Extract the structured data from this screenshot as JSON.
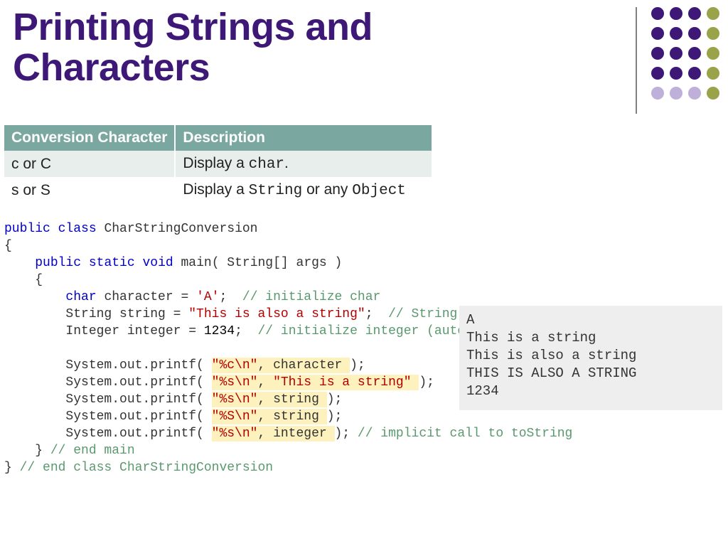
{
  "title": "Printing Strings and\nCharacters",
  "title_color": "#3d1877",
  "dot_grid": {
    "rows": 5,
    "cols": 4,
    "colors": [
      "#3d1877",
      "#3d1877",
      "#3d1877",
      "#9aa24a",
      "#3d1877",
      "#3d1877",
      "#3d1877",
      "#9aa24a",
      "#3d1877",
      "#3d1877",
      "#3d1877",
      "#9aa24a",
      "#3d1877",
      "#3d1877",
      "#3d1877",
      "#9aa24a",
      "#bfb0d9",
      "#bfb0d9",
      "#bfb0d9",
      "#9aa24a"
    ]
  },
  "table": {
    "header_bg": "#7aa8a1",
    "row_even_bg": "#e7eeec",
    "row_odd_bg": "#ffffff",
    "columns": [
      "Conversion Character",
      "Description"
    ],
    "rows": [
      {
        "c0": "c or C",
        "c1_pre": "Display a ",
        "c1_code": "char",
        "c1_post": "."
      },
      {
        "c0": "s or S",
        "c1_pre": "Display a ",
        "c1_code": "String",
        "c1_post": " or any ",
        "c1_code2": "Object"
      }
    ]
  },
  "code": {
    "kw_color": "#0000c8",
    "str_color": "#b00000",
    "cmt_color": "#5a986e",
    "highlight_bg": "#fdf1be",
    "lines": [
      [
        {
          "t": "public",
          "c": "kw"
        },
        {
          "t": " "
        },
        {
          "t": "class",
          "c": "kw"
        },
        {
          "t": " CharStringConversion"
        }
      ],
      [
        {
          "t": "{"
        }
      ],
      [
        {
          "t": "    "
        },
        {
          "t": "public",
          "c": "kw"
        },
        {
          "t": " "
        },
        {
          "t": "static",
          "c": "kw"
        },
        {
          "t": " "
        },
        {
          "t": "void",
          "c": "kw"
        },
        {
          "t": " main( String[] args )"
        }
      ],
      [
        {
          "t": "    {"
        }
      ],
      [
        {
          "t": "        "
        },
        {
          "t": "char",
          "c": "kw"
        },
        {
          "t": " character = "
        },
        {
          "t": "'A'",
          "c": "str"
        },
        {
          "t": ";  "
        },
        {
          "t": "// initialize char",
          "c": "cmt"
        }
      ],
      [
        {
          "t": "        String string = "
        },
        {
          "t": "\"This is also a string\"",
          "c": "str"
        },
        {
          "t": ";  "
        },
        {
          "t": "// String o",
          "c": "cmt"
        }
      ],
      [
        {
          "t": "        Integer integer = "
        },
        {
          "t": "1234",
          "c": "num"
        },
        {
          "t": ";  "
        },
        {
          "t": "// initialize integer (autob",
          "c": "cmt"
        }
      ],
      [
        {
          "t": " "
        }
      ],
      [
        {
          "t": "        System.out.printf( "
        },
        {
          "t": "\"%c\\n\"",
          "c": "str",
          "hl": true
        },
        {
          "t": ", ",
          "hl": true
        },
        {
          "t": "character ",
          "hl": true
        },
        {
          "t": ");"
        }
      ],
      [
        {
          "t": "        System.out.printf( "
        },
        {
          "t": "\"%s\\n\"",
          "c": "str",
          "hl": true
        },
        {
          "t": ", ",
          "hl": true
        },
        {
          "t": "\"This is a string\" ",
          "c": "str",
          "hl": true
        },
        {
          "t": ");"
        }
      ],
      [
        {
          "t": "        System.out.printf( "
        },
        {
          "t": "\"%s\\n\"",
          "c": "str",
          "hl": true
        },
        {
          "t": ", ",
          "hl": true
        },
        {
          "t": "string ",
          "hl": true
        },
        {
          "t": ");"
        }
      ],
      [
        {
          "t": "        System.out.printf( "
        },
        {
          "t": "\"%S\\n\"",
          "c": "str",
          "hl": true
        },
        {
          "t": ", ",
          "hl": true
        },
        {
          "t": "string ",
          "hl": true
        },
        {
          "t": ");"
        }
      ],
      [
        {
          "t": "        System.out.printf( "
        },
        {
          "t": "\"%s\\n\"",
          "c": "str",
          "hl": true
        },
        {
          "t": ", ",
          "hl": true
        },
        {
          "t": "integer ",
          "hl": true
        },
        {
          "t": "); "
        },
        {
          "t": "// implicit call to toString",
          "c": "cmt"
        }
      ],
      [
        {
          "t": "    } "
        },
        {
          "t": "// end main",
          "c": "cmt"
        }
      ],
      [
        {
          "t": "} "
        },
        {
          "t": "// end class CharStringConversion",
          "c": "cmt"
        }
      ]
    ]
  },
  "output": {
    "bg": "#eeeeee",
    "lines": [
      "A",
      "This is a string",
      "This is also a string",
      "THIS IS ALSO A STRING",
      "1234"
    ]
  }
}
